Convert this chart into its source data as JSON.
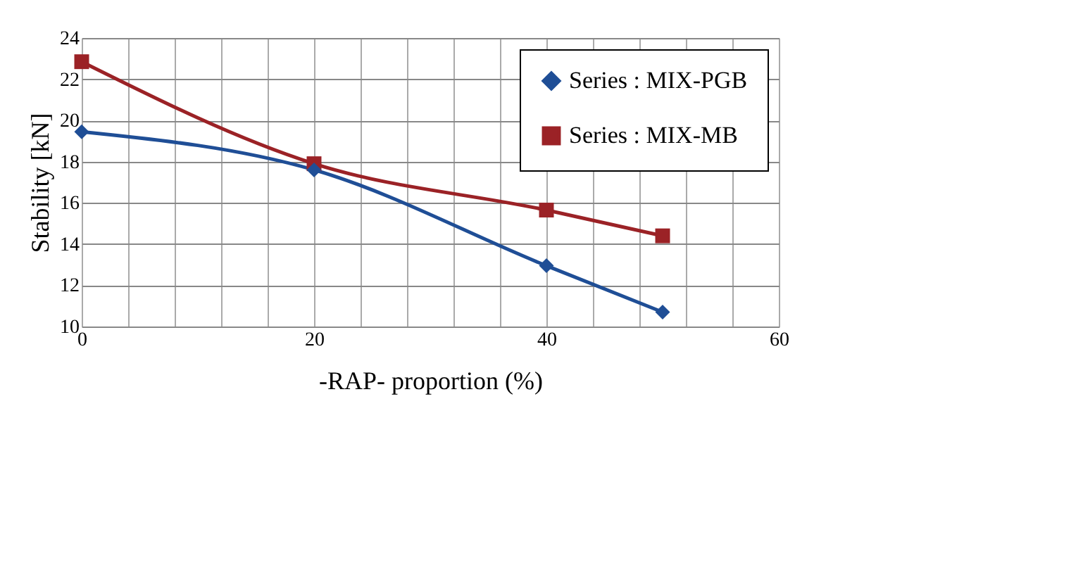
{
  "chart_data": {
    "type": "line",
    "xlabel": "-RAP- proportion (%)",
    "ylabel": "Stability [kN]",
    "x": [
      0,
      20,
      40,
      50
    ],
    "series": [
      {
        "name": "Series : MIX-PGB",
        "color": "#1f4e96",
        "marker": "diamond",
        "values": [
          19.45,
          17.6,
          12.95,
          10.7
        ]
      },
      {
        "name": "Series : MIX-MB",
        "color": "#9b2226",
        "marker": "square",
        "values": [
          22.85,
          17.9,
          15.65,
          14.4
        ]
      }
    ],
    "xlim": [
      0,
      60
    ],
    "xticks": [
      0,
      {
        "value": 4,
        "label": null
      },
      {
        "value": 8,
        "label": null
      },
      {
        "value": 12,
        "label": null
      },
      {
        "value": 16,
        "label": null
      },
      20,
      {
        "value": 24,
        "label": null
      },
      {
        "value": 28,
        "label": null
      },
      {
        "value": 32,
        "label": null
      },
      {
        "value": 36,
        "label": null
      },
      40,
      {
        "value": 44,
        "label": null
      },
      {
        "value": 48,
        "label": null
      },
      {
        "value": 52,
        "label": null
      },
      {
        "value": 56,
        "label": null
      },
      60
    ],
    "ylim": [
      10,
      24
    ],
    "yticks": [
      10,
      12,
      14,
      16,
      18,
      20,
      22,
      24
    ],
    "grid": true,
    "legend": "top right"
  }
}
